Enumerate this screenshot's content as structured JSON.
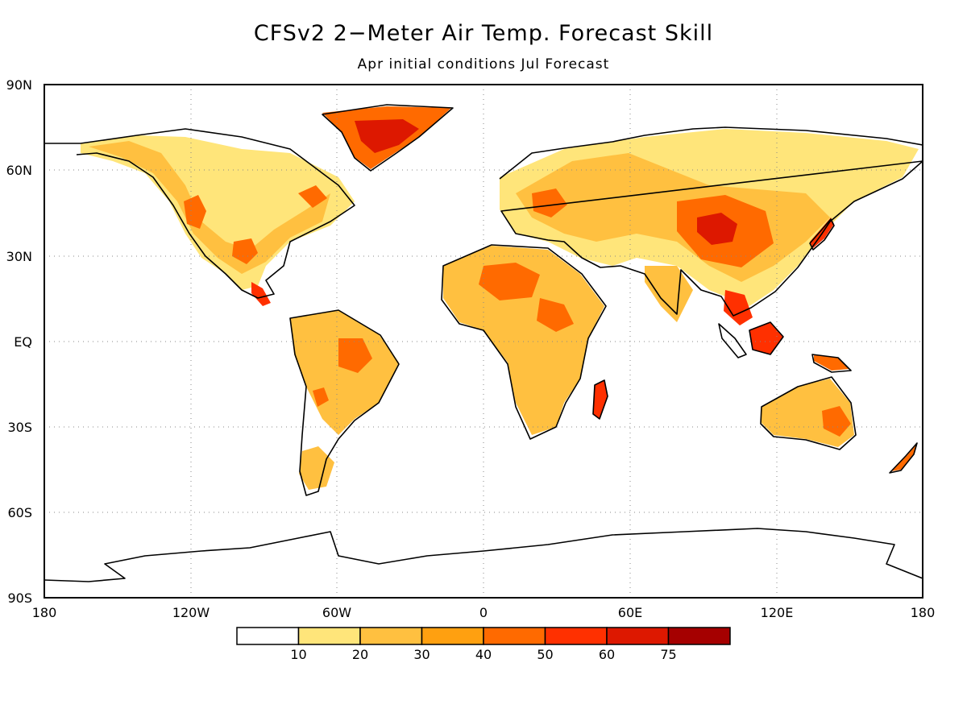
{
  "title": "CFSv2 2−Meter Air Temp. Forecast Skill",
  "subtitle": "Apr initial conditions   Jul Forecast",
  "map": {
    "lat_labels": [
      "90N",
      "60N",
      "30N",
      "EQ",
      "30S",
      "60S",
      "90S"
    ],
    "lon_labels": [
      "180",
      "120W",
      "60W",
      "0",
      "60E",
      "120E",
      "180"
    ],
    "grid": "dotted",
    "projection": "equirectangular"
  },
  "colorbar": {
    "labels": [
      "10",
      "20",
      "30",
      "40",
      "50",
      "60",
      "75"
    ],
    "colors": [
      "#ffffff",
      "#ffe57a",
      "#ffc040",
      "#ffa010",
      "#ff6a00",
      "#ff3000",
      "#dd1800",
      "#a50000"
    ]
  },
  "legend_note": "",
  "colors": {
    "low_skill": "#ffe57a",
    "mid_skill": "#ffa010",
    "high_skill": "#dd1800",
    "max_skill": "#a50000",
    "coastline": "#000000"
  }
}
